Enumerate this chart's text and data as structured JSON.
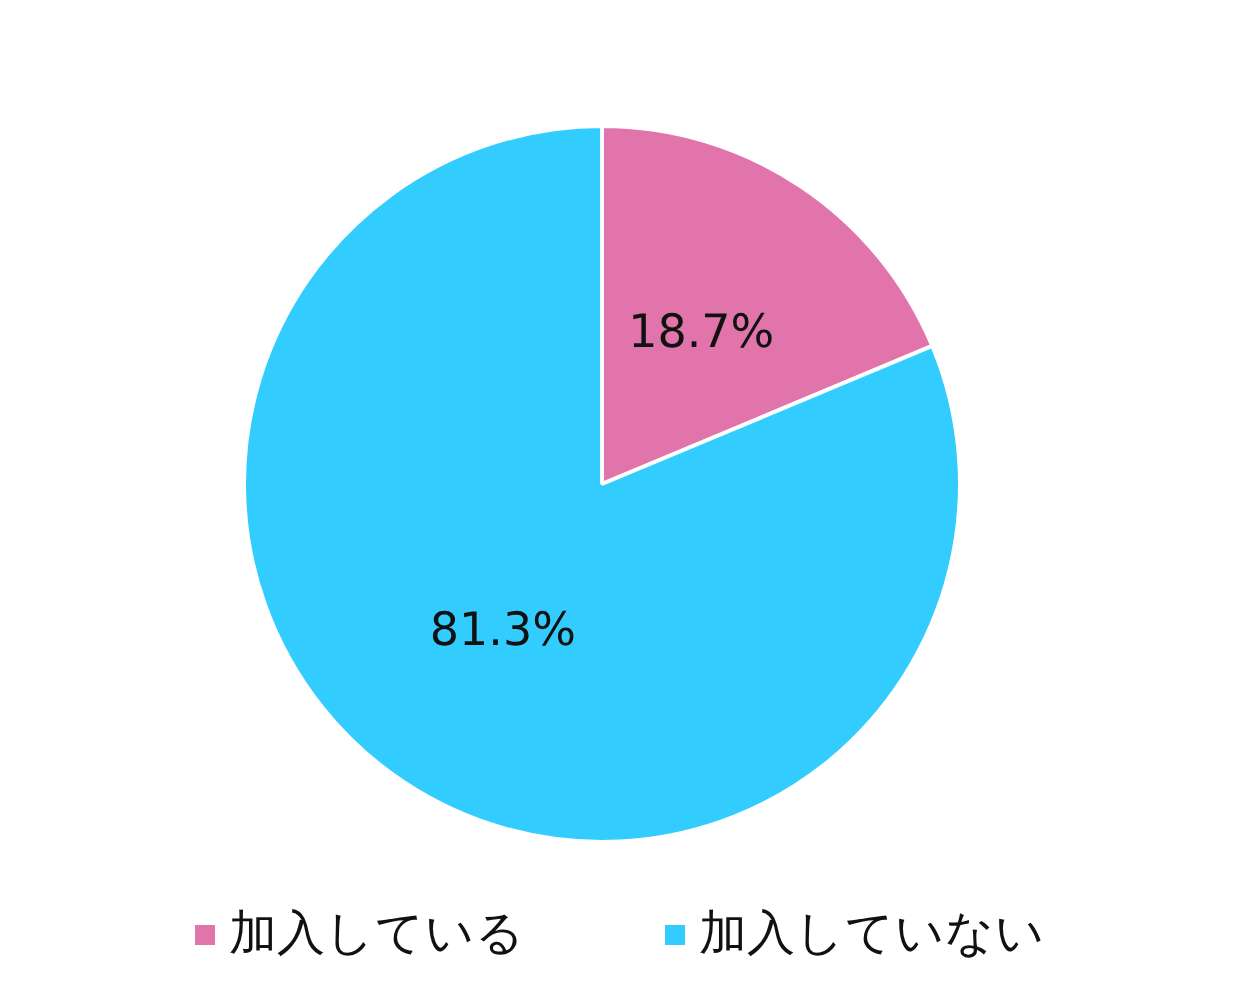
{
  "chart_data": {
    "type": "pie",
    "categories": [
      "加入している",
      "加入していない"
    ],
    "values": [
      18.7,
      81.3
    ],
    "colors": [
      "#e174ab",
      "#33ccff"
    ],
    "value_labels": [
      "18.7%",
      "81.3%"
    ],
    "legend": "bottom"
  }
}
